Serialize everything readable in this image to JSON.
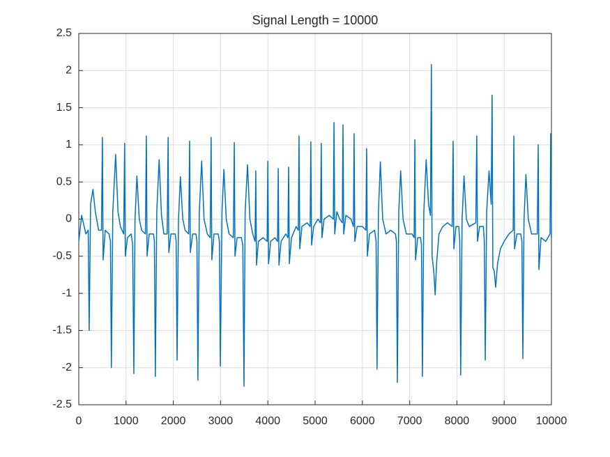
{
  "chart_data": {
    "type": "line",
    "title": "Signal Length = 10000",
    "x": [
      0,
      60,
      150,
      200,
      220,
      250,
      300,
      350,
      420,
      480,
      500,
      515,
      560,
      640,
      670,
      690,
      720,
      780,
      830,
      880,
      950,
      970,
      985,
      1030,
      1110,
      1140,
      1165,
      1190,
      1230,
      1280,
      1330,
      1410,
      1430,
      1445,
      1490,
      1580,
      1600,
      1620,
      1650,
      1700,
      1750,
      1800,
      1870,
      1890,
      1905,
      1950,
      2040,
      2060,
      2080,
      2110,
      2150,
      2200,
      2250,
      2325,
      2345,
      2360,
      2410,
      2480,
      2500,
      2520,
      2550,
      2600,
      2650,
      2720,
      2780,
      2800,
      2815,
      2860,
      2950,
      2975,
      2995,
      3030,
      3070,
      3120,
      3180,
      3270,
      3290,
      3305,
      3350,
      3440,
      3470,
      3495,
      3520,
      3570,
      3620,
      3680,
      3730,
      3745,
      3760,
      3800,
      3900,
      3985,
      4000,
      4015,
      4060,
      4150,
      4205,
      4220,
      4235,
      4280,
      4380,
      4425,
      4440,
      4455,
      4500,
      4600,
      4645,
      4660,
      4675,
      4720,
      4830,
      4895,
      4910,
      4925,
      4970,
      5060,
      5115,
      5130,
      5145,
      5190,
      5300,
      5385,
      5400,
      5415,
      5460,
      5520,
      5575,
      5590,
      5605,
      5650,
      5760,
      5810,
      5825,
      5840,
      5890,
      6000,
      6075,
      6090,
      6105,
      6150,
      6260,
      6290,
      6310,
      6340,
      6380,
      6430,
      6500,
      6600,
      6700,
      6720,
      6740,
      6770,
      6810,
      6860,
      6930,
      7050,
      7095,
      7110,
      7125,
      7170,
      7230,
      7250,
      7270,
      7300,
      7350,
      7400,
      7440,
      7460,
      7475,
      7510,
      7540,
      7570,
      7620,
      7700,
      7800,
      7900,
      7920,
      7935,
      7980,
      8040,
      8060,
      8080,
      8110,
      8150,
      8200,
      8260,
      8400,
      8420,
      8435,
      8480,
      8560,
      8580,
      8600,
      8630,
      8680,
      8725,
      8745,
      8760,
      8790,
      8820,
      8860,
      8920,
      9000,
      9100,
      9190,
      9205,
      9220,
      9270,
      9350,
      9375,
      9395,
      9420,
      9460,
      9510,
      9580,
      9700,
      9720,
      9735,
      9780,
      9880,
      9970,
      9985,
      10000
    ],
    "series": [
      {
        "color": "#0072bd",
        "values": [
          -0.3,
          0.05,
          -0.2,
          -0.15,
          -1.5,
          0.2,
          0.4,
          0.1,
          -0.15,
          -0.15,
          1.1,
          -0.55,
          -0.15,
          -0.2,
          -0.3,
          -2.0,
          0.1,
          0.87,
          0.1,
          -0.1,
          -0.2,
          1.02,
          -0.5,
          -0.25,
          -0.2,
          -0.35,
          -2.08,
          0.0,
          0.58,
          0.0,
          -0.15,
          -0.2,
          1.12,
          -0.5,
          -0.2,
          -0.2,
          -0.3,
          -2.12,
          0.1,
          0.8,
          0.05,
          -0.2,
          -0.2,
          1.1,
          -0.45,
          -0.2,
          -0.2,
          -0.3,
          -1.9,
          0.0,
          0.57,
          0.0,
          -0.15,
          -0.2,
          1.05,
          -0.45,
          -0.2,
          -0.2,
          -0.3,
          -2.17,
          0.1,
          0.78,
          0.0,
          -0.2,
          -0.25,
          1.1,
          -0.55,
          -0.2,
          -0.2,
          -0.3,
          -1.98,
          0.1,
          0.67,
          0.0,
          -0.2,
          -0.25,
          1.03,
          -0.5,
          -0.25,
          -0.25,
          -0.35,
          -2.25,
          0.1,
          0.73,
          0.0,
          -0.2,
          -0.3,
          0.65,
          -0.62,
          -0.3,
          -0.25,
          -0.3,
          0.78,
          -0.6,
          -0.3,
          -0.25,
          -0.3,
          0.68,
          -0.62,
          -0.3,
          -0.2,
          -0.25,
          0.7,
          -0.6,
          -0.25,
          -0.1,
          -0.15,
          1.12,
          -0.4,
          -0.1,
          -0.05,
          -0.1,
          1.04,
          -0.35,
          -0.1,
          0.0,
          -0.05,
          1.02,
          -0.25,
          0.0,
          0.05,
          0.0,
          1.3,
          -0.2,
          0.1,
          0.0,
          -0.05,
          1.27,
          -0.2,
          0.05,
          0.0,
          -0.1,
          1.15,
          -0.3,
          -0.1,
          -0.1,
          -0.15,
          0.95,
          -0.5,
          -0.2,
          -0.15,
          -0.3,
          -2.02,
          0.1,
          0.77,
          0.0,
          -0.2,
          -0.15,
          -0.2,
          -0.3,
          -2.2,
          0.1,
          0.65,
          0.0,
          -0.2,
          -0.2,
          -0.25,
          1.07,
          -0.55,
          -0.25,
          -0.25,
          -0.35,
          -2.12,
          0.1,
          0.8,
          0.2,
          0.05,
          2.08,
          -0.5,
          -0.7,
          -1.02,
          -0.6,
          -0.2,
          -0.1,
          -0.05,
          -0.1,
          1.05,
          -0.4,
          -0.1,
          -0.1,
          -0.3,
          -2.1,
          0.0,
          0.58,
          0.0,
          -0.1,
          -0.05,
          1.12,
          -0.3,
          -0.1,
          -0.1,
          -0.3,
          -1.9,
          0.1,
          0.65,
          0.2,
          1.67,
          -0.65,
          -0.7,
          -0.92,
          -0.6,
          -0.4,
          -0.3,
          -0.2,
          -0.15,
          1.12,
          -0.4,
          -0.2,
          -0.2,
          -0.3,
          -1.88,
          0.0,
          0.6,
          0.0,
          -0.2,
          -0.2,
          1.0,
          -0.68,
          -0.25,
          -0.3,
          -0.2,
          1.15,
          -0.25
        ]
      }
    ],
    "xlim": [
      0,
      10000
    ],
    "ylim": [
      -2.5,
      2.5
    ],
    "xticks": [
      0,
      1000,
      2000,
      3000,
      4000,
      5000,
      6000,
      7000,
      8000,
      9000,
      10000
    ],
    "yticks": [
      -2.5,
      -2,
      -1.5,
      -1,
      -0.5,
      0,
      0.5,
      1,
      1.5,
      2,
      2.5
    ],
    "grid": true
  }
}
